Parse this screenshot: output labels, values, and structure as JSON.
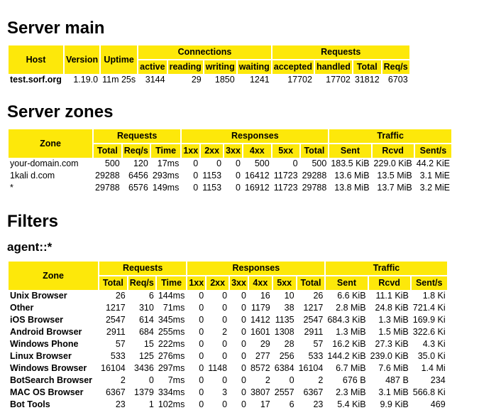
{
  "server_main": {
    "title": "Server main",
    "headers": {
      "host": "Host",
      "version": "Version",
      "uptime": "Uptime",
      "connections": "Connections",
      "requests": "Requests",
      "conn_cols": [
        "active",
        "reading",
        "writing",
        "waiting"
      ],
      "req_cols": [
        "accepted",
        "handled",
        "Total",
        "Req/s"
      ]
    },
    "row": {
      "host": "test.sorf.org",
      "version": "1.19.0",
      "uptime": "11m 25s",
      "active": "3144",
      "reading": "29",
      "writing": "1850",
      "waiting": "1241",
      "accepted": "17702",
      "handled": "17702",
      "total": "31812",
      "reqs": "6703"
    }
  },
  "server_zones": {
    "title": "Server zones",
    "headers": {
      "zone": "Zone",
      "requests": "Requests",
      "responses": "Responses",
      "traffic": "Traffic",
      "sub": [
        "Total",
        "Req/s",
        "Time",
        "1xx",
        "2xx",
        "3xx",
        "4xx",
        "5xx",
        "Total",
        "Sent",
        "Rcvd",
        "Sent/s"
      ]
    },
    "rows": [
      [
        "your-domain.com",
        "500",
        "120",
        "17ms",
        "0",
        "0",
        "0",
        "500",
        "0",
        "500",
        "183.5 KiB",
        "229.0 KiB",
        "44.2 KiE"
      ],
      [
        "1kali          d.com",
        "29288",
        "6456",
        "293ms",
        "0",
        "1153",
        "0",
        "16412",
        "11723",
        "29288",
        "13.6 MiB",
        "13.5 MiB",
        "3.1 MiE"
      ],
      [
        "*",
        "29788",
        "6576",
        "149ms",
        "0",
        "1153",
        "0",
        "16912",
        "11723",
        "29788",
        "13.8 MiB",
        "13.7 MiB",
        "3.2 MiE"
      ]
    ]
  },
  "filters": {
    "title": "Filters",
    "subtitle": "agent::*",
    "headers": {
      "zone": "Zone",
      "requests": "Requests",
      "responses": "Responses",
      "traffic": "Traffic",
      "sub": [
        "Total",
        "Req/s",
        "Time",
        "1xx",
        "2xx",
        "3xx",
        "4xx",
        "5xx",
        "Total",
        "Sent",
        "Rcvd",
        "Sent/s"
      ]
    },
    "rows": [
      [
        "Unix Browser",
        "26",
        "6",
        "144ms",
        "0",
        "0",
        "0",
        "16",
        "10",
        "26",
        "6.6 KiB",
        "11.1 KiB",
        "1.8 Ki"
      ],
      [
        "Other",
        "1217",
        "310",
        "71ms",
        "0",
        "0",
        "0",
        "1179",
        "38",
        "1217",
        "2.8 MiB",
        "24.8 KiB",
        "721.4 Ki"
      ],
      [
        "iOS Browser",
        "2547",
        "614",
        "345ms",
        "0",
        "0",
        "0",
        "1412",
        "1135",
        "2547",
        "684.3 KiB",
        "1.3 MiB",
        "169.9 Ki"
      ],
      [
        "Android Browser",
        "2911",
        "684",
        "255ms",
        "0",
        "2",
        "0",
        "1601",
        "1308",
        "2911",
        "1.3 MiB",
        "1.5 MiB",
        "322.6 Ki"
      ],
      [
        "Windows Phone",
        "57",
        "15",
        "222ms",
        "0",
        "0",
        "0",
        "29",
        "28",
        "57",
        "16.2 KiB",
        "27.3 KiB",
        "4.3 Ki"
      ],
      [
        "Linux Browser",
        "533",
        "125",
        "276ms",
        "0",
        "0",
        "0",
        "277",
        "256",
        "533",
        "144.2 KiB",
        "239.0 KiB",
        "35.0 Ki"
      ],
      [
        "Windows Browser",
        "16104",
        "3436",
        "297ms",
        "0",
        "1148",
        "0",
        "8572",
        "6384",
        "16104",
        "6.7 MiB",
        "7.6 MiB",
        "1.4 Mi"
      ],
      [
        "BotSearch Browser",
        "2",
        "0",
        "7ms",
        "0",
        "0",
        "0",
        "2",
        "0",
        "2",
        "676 B",
        "487 B",
        "234"
      ],
      [
        "MAC OS Browser",
        "6367",
        "1379",
        "334ms",
        "0",
        "3",
        "0",
        "3807",
        "2557",
        "6367",
        "2.3 MiB",
        "3.1 MiB",
        "566.8 Ki"
      ],
      [
        "Bot Tools",
        "23",
        "1",
        "102ms",
        "0",
        "0",
        "0",
        "17",
        "6",
        "23",
        "5.4 KiB",
        "9.9 KiB",
        "469"
      ]
    ]
  }
}
